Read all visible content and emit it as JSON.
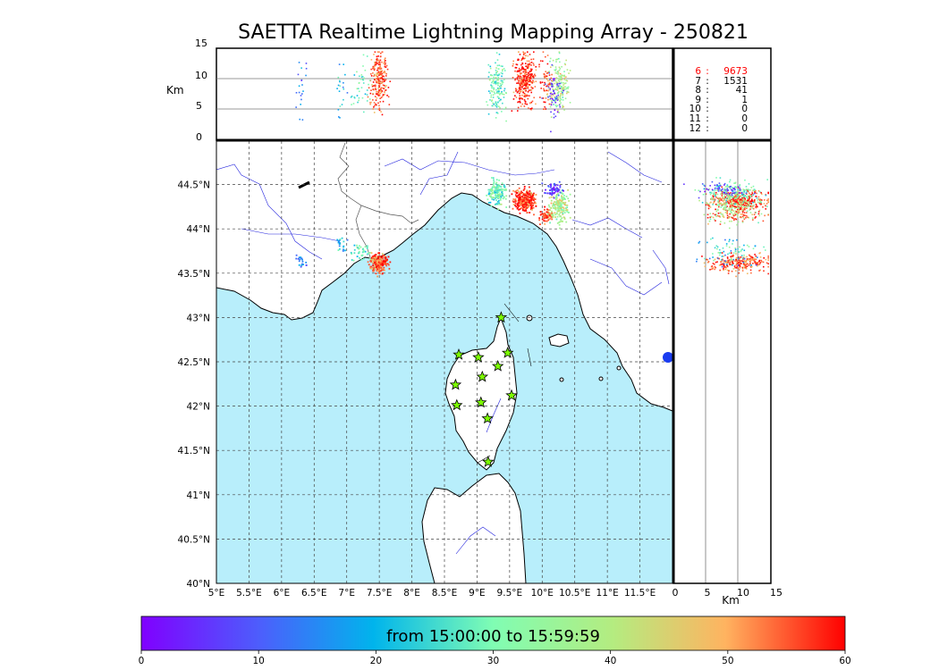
{
  "title": "SAETTA Realtime Lightning Mapping Array - 250821",
  "altitude_axis": {
    "unit_label": "Km",
    "ticks": [
      "15",
      "10",
      "5",
      "0"
    ]
  },
  "range_axis": {
    "unit_label": "Km",
    "ticks": [
      "0",
      "5",
      "10",
      "15"
    ]
  },
  "map": {
    "lon_ticks": [
      "5°E",
      "5.5°E",
      "6°E",
      "6.5°E",
      "7°E",
      "7.5°E",
      "8°E",
      "8.5°E",
      "9°E",
      "9.5°E",
      "10°E",
      "10.5°E",
      "11°E",
      "11.5°E"
    ],
    "lat_ticks": [
      "44.5°N",
      "44°N",
      "43.5°N",
      "43°N",
      "42.5°N",
      "42°N",
      "41.5°N",
      "41°N",
      "40.5°N",
      "40°N"
    ],
    "lon_range": [
      5,
      12
    ],
    "lat_range": [
      40,
      44.95
    ],
    "sea_color": "#b8eefb",
    "station_marker": "star-icon",
    "stations": [
      {
        "lon": 9.37,
        "lat": 43.0
      },
      {
        "lon": 8.72,
        "lat": 42.58
      },
      {
        "lon": 9.02,
        "lat": 42.55
      },
      {
        "lon": 9.47,
        "lat": 42.6
      },
      {
        "lon": 9.32,
        "lat": 42.45
      },
      {
        "lon": 9.08,
        "lat": 42.33
      },
      {
        "lon": 8.67,
        "lat": 42.24
      },
      {
        "lon": 9.53,
        "lat": 42.12
      },
      {
        "lon": 9.06,
        "lat": 42.04
      },
      {
        "lon": 8.69,
        "lat": 42.01
      },
      {
        "lon": 9.16,
        "lat": 41.86
      },
      {
        "lon": 9.17,
        "lat": 41.37
      }
    ]
  },
  "source_counts": [
    {
      "label": "6",
      "value": "9673",
      "color": "#ff0000"
    },
    {
      "label": "7",
      "value": "1531",
      "color": "#000000"
    },
    {
      "label": "8",
      "value": "41",
      "color": "#000000"
    },
    {
      "label": "9",
      "value": "1",
      "color": "#000000"
    },
    {
      "label": "10",
      "value": "0",
      "color": "#000000"
    },
    {
      "label": "11",
      "value": "0",
      "color": "#000000"
    },
    {
      "label": "12",
      "value": "0",
      "color": "#000000"
    }
  ],
  "colorbar": {
    "label": "from 15:00:00 to 15:59:59",
    "ticks": [
      "0",
      "10",
      "20",
      "30",
      "40",
      "50",
      "60"
    ],
    "range": [
      0,
      60
    ]
  },
  "lightning_clusters": [
    {
      "lon": 7.48,
      "lat": 43.62,
      "alt": 10,
      "minute": 55,
      "n": 240,
      "slon": 0.06,
      "slat": 0.05
    },
    {
      "lon": 7.2,
      "lat": 43.75,
      "alt": 9,
      "minute": 28,
      "n": 40,
      "slon": 0.08,
      "slat": 0.05
    },
    {
      "lon": 6.9,
      "lat": 43.85,
      "alt": 8,
      "minute": 20,
      "n": 20,
      "slon": 0.05,
      "slat": 0.05
    },
    {
      "lon": 9.72,
      "lat": 44.33,
      "alt": 10,
      "minute": 57,
      "n": 320,
      "slon": 0.08,
      "slat": 0.06
    },
    {
      "lon": 9.3,
      "lat": 44.42,
      "alt": 9,
      "minute": 30,
      "n": 160,
      "slon": 0.07,
      "slat": 0.07
    },
    {
      "lon": 10.25,
      "lat": 44.25,
      "alt": 9,
      "minute": 38,
      "n": 180,
      "slon": 0.07,
      "slat": 0.09
    },
    {
      "lon": 10.15,
      "lat": 44.45,
      "alt": 8,
      "minute": 6,
      "n": 60,
      "slon": 0.07,
      "slat": 0.04
    },
    {
      "lon": 10.05,
      "lat": 44.15,
      "alt": 10,
      "minute": 55,
      "n": 60,
      "slon": 0.05,
      "slat": 0.04
    },
    {
      "lon": 6.3,
      "lat": 43.65,
      "alt": 9,
      "minute": 15,
      "n": 20,
      "slon": 0.05,
      "slat": 0.04
    }
  ]
}
